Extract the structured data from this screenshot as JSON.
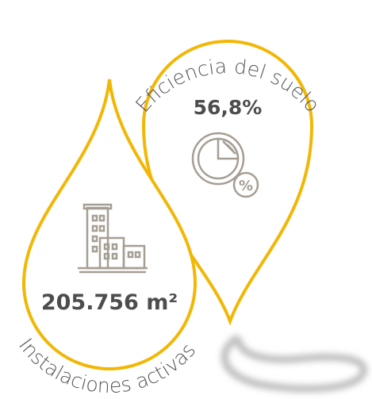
{
  "top_pin": {
    "title": "Eficiencia del suelo",
    "value": "56,8%"
  },
  "bottom_drop": {
    "title": "Instalaciones activas",
    "value": "205.756 m²"
  }
}
